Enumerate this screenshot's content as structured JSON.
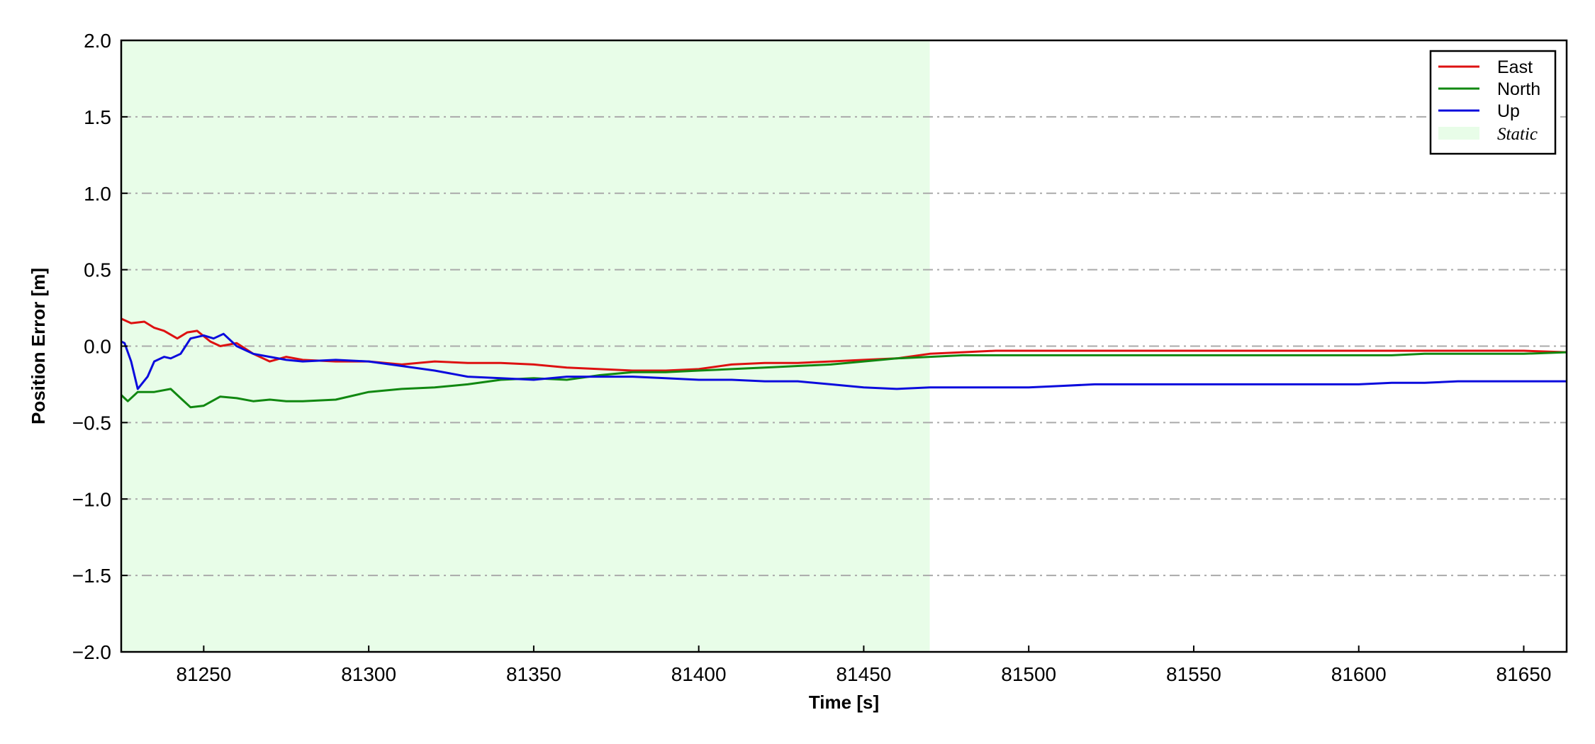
{
  "chart_data": {
    "type": "line",
    "title": "",
    "xlabel": "Time [s]",
    "ylabel": "Position Error [m]",
    "xlim": [
      81225,
      81663
    ],
    "ylim": [
      -2.0,
      2.0
    ],
    "x_ticks": [
      81250,
      81300,
      81350,
      81400,
      81450,
      81500,
      81550,
      81600,
      81650
    ],
    "x_tick_labels": [
      "81250",
      "81300",
      "81350",
      "81400",
      "81450",
      "81500",
      "81550",
      "81600",
      "81650"
    ],
    "y_ticks": [
      -2.0,
      -1.5,
      -1.0,
      -0.5,
      0.0,
      0.5,
      1.0,
      1.5,
      2.0
    ],
    "y_tick_labels": [
      "−2.0",
      "−1.5",
      "−1.0",
      "−0.5",
      "0.0",
      "0.5",
      "1.0",
      "1.5",
      "2.0"
    ],
    "grid": "horizontal dash-dot",
    "legend_position": "top-right",
    "shaded_region": {
      "label": "Static",
      "x_start": 81225,
      "x_end": 81470,
      "color": "#e8fde8"
    },
    "series": [
      {
        "name": "East",
        "color": "#dd1111",
        "x": [
          81225,
          81228,
          81232,
          81235,
          81238,
          81242,
          81245,
          81248,
          81252,
          81255,
          81260,
          81265,
          81270,
          81275,
          81280,
          81290,
          81300,
          81310,
          81320,
          81330,
          81340,
          81350,
          81360,
          81370,
          81380,
          81390,
          81400,
          81410,
          81420,
          81430,
          81440,
          81450,
          81460,
          81470,
          81480,
          81490,
          81500,
          81510,
          81520,
          81530,
          81540,
          81550,
          81560,
          81570,
          81580,
          81590,
          81600,
          81610,
          81620,
          81630,
          81640,
          81650,
          81663
        ],
        "y": [
          0.18,
          0.15,
          0.16,
          0.12,
          0.1,
          0.05,
          0.09,
          0.1,
          0.03,
          0.0,
          0.02,
          -0.05,
          -0.1,
          -0.07,
          -0.09,
          -0.1,
          -0.1,
          -0.12,
          -0.1,
          -0.11,
          -0.11,
          -0.12,
          -0.14,
          -0.15,
          -0.16,
          -0.16,
          -0.15,
          -0.12,
          -0.11,
          -0.11,
          -0.1,
          -0.09,
          -0.08,
          -0.05,
          -0.04,
          -0.03,
          -0.03,
          -0.03,
          -0.03,
          -0.03,
          -0.03,
          -0.03,
          -0.03,
          -0.03,
          -0.03,
          -0.03,
          -0.03,
          -0.03,
          -0.03,
          -0.03,
          -0.03,
          -0.03,
          -0.04
        ]
      },
      {
        "name": "North",
        "color": "#118811",
        "x": [
          81225,
          81227,
          81230,
          81235,
          81240,
          81243,
          81246,
          81250,
          81255,
          81260,
          81265,
          81270,
          81275,
          81280,
          81290,
          81300,
          81310,
          81320,
          81330,
          81340,
          81350,
          81360,
          81370,
          81380,
          81390,
          81400,
          81410,
          81420,
          81430,
          81440,
          81450,
          81460,
          81470,
          81480,
          81490,
          81500,
          81510,
          81520,
          81530,
          81540,
          81550,
          81560,
          81570,
          81580,
          81590,
          81600,
          81610,
          81620,
          81630,
          81640,
          81650,
          81663
        ],
        "y": [
          -0.32,
          -0.36,
          -0.3,
          -0.3,
          -0.28,
          -0.34,
          -0.4,
          -0.39,
          -0.33,
          -0.34,
          -0.36,
          -0.35,
          -0.36,
          -0.36,
          -0.35,
          -0.3,
          -0.28,
          -0.27,
          -0.25,
          -0.22,
          -0.21,
          -0.22,
          -0.19,
          -0.17,
          -0.17,
          -0.16,
          -0.15,
          -0.14,
          -0.13,
          -0.12,
          -0.1,
          -0.08,
          -0.07,
          -0.06,
          -0.06,
          -0.06,
          -0.06,
          -0.06,
          -0.06,
          -0.06,
          -0.06,
          -0.06,
          -0.06,
          -0.06,
          -0.06,
          -0.06,
          -0.06,
          -0.05,
          -0.05,
          -0.05,
          -0.05,
          -0.04
        ]
      },
      {
        "name": "Up",
        "color": "#0b0bdd",
        "x": [
          81225,
          81226,
          81228,
          81230,
          81233,
          81235,
          81238,
          81240,
          81243,
          81246,
          81250,
          81253,
          81256,
          81260,
          81265,
          81270,
          81275,
          81280,
          81290,
          81300,
          81310,
          81320,
          81330,
          81340,
          81350,
          81360,
          81370,
          81380,
          81390,
          81400,
          81410,
          81420,
          81430,
          81440,
          81450,
          81460,
          81470,
          81480,
          81490,
          81500,
          81510,
          81520,
          81530,
          81540,
          81550,
          81560,
          81570,
          81580,
          81590,
          81600,
          81610,
          81620,
          81630,
          81640,
          81650,
          81663
        ],
        "y": [
          0.03,
          0.02,
          -0.1,
          -0.28,
          -0.2,
          -0.1,
          -0.07,
          -0.08,
          -0.05,
          0.05,
          0.07,
          0.05,
          0.08,
          0.0,
          -0.05,
          -0.07,
          -0.09,
          -0.1,
          -0.09,
          -0.1,
          -0.13,
          -0.16,
          -0.2,
          -0.21,
          -0.22,
          -0.2,
          -0.2,
          -0.2,
          -0.21,
          -0.22,
          -0.22,
          -0.23,
          -0.23,
          -0.25,
          -0.27,
          -0.28,
          -0.27,
          -0.27,
          -0.27,
          -0.27,
          -0.26,
          -0.25,
          -0.25,
          -0.25,
          -0.25,
          -0.25,
          -0.25,
          -0.25,
          -0.25,
          -0.25,
          -0.24,
          -0.24,
          -0.23,
          -0.23,
          -0.23,
          -0.23
        ]
      }
    ],
    "legend": [
      {
        "label": "East",
        "color": "#dd1111"
      },
      {
        "label": "North",
        "color": "#118811"
      },
      {
        "label": "Up",
        "color": "#0b0bdd"
      },
      {
        "label": "Static",
        "color": "#e8fde8"
      }
    ]
  }
}
